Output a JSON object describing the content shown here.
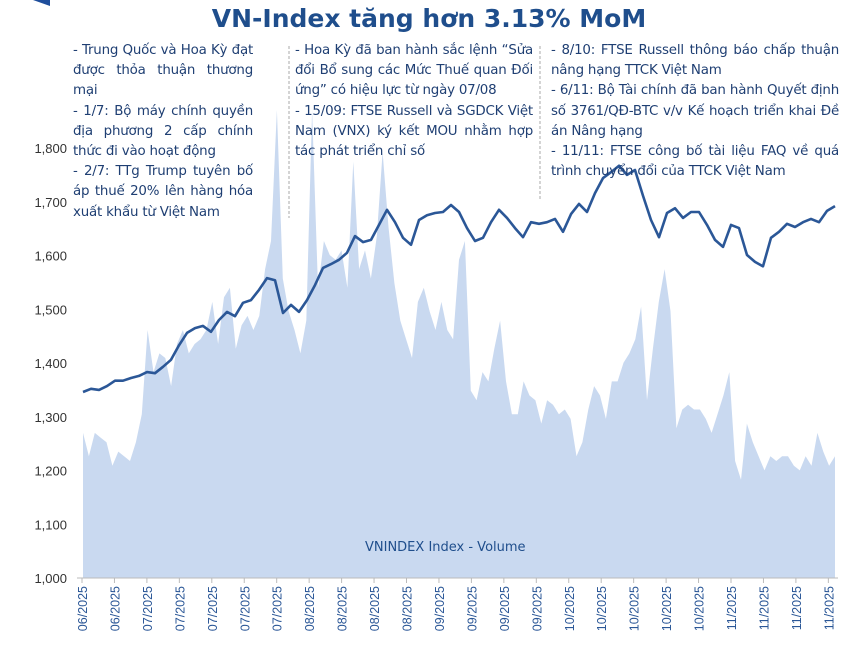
{
  "title": "VN-Index tăng hơn 3.13% MoM",
  "annotations": [
    {
      "items": [
        "- Trung Quốc và Hoa Kỳ đạt được thỏa thuận thương mại",
        "- 1/7: Bộ máy chính quyền địa phương 2 cấp chính thức đi vào hoạt động",
        "- 2/7: TTg Trump tuyên bố áp thuế 20% lên hàng hóa xuất khẩu từ Việt Nam"
      ]
    },
    {
      "items": [
        "- Hoa Kỳ đã ban hành sắc lệnh “Sửa đổi Bổ sung các Mức Thuế quan Đối ứng” có hiệu lực từ ngày 07/08",
        "- 15/09: FTSE Russell và SGDCK Việt Nam (VNX) ký kết MOU nhằm hợp tác phát triển chỉ số"
      ]
    },
    {
      "items": [
        "- 8/10: FTSE Russell thông báo chấp thuận nâng hạng TTCK Việt Nam",
        "- 6/11: Bộ Tài chính đã ban hành Quyết định số 3761/QĐ-BTC v/v Kế hoạch triển khai Đề án Nâng hạng",
        "- 11/11: FTSE công bố tài liệu FAQ về quá trình chuyển đổi của TTCK Việt Nam"
      ]
    }
  ],
  "chart_data": {
    "type": "line",
    "title": "VN-Index tăng hơn 3.13% MoM",
    "ylim": [
      1000,
      1800
    ],
    "yticks": [
      "1,000",
      "1,100",
      "1,200",
      "1,300",
      "1,400",
      "1,500",
      "1,600",
      "1,700",
      "1,800"
    ],
    "ytick_values": [
      1000,
      1100,
      1200,
      1300,
      1400,
      1500,
      1600,
      1700,
      1800
    ],
    "xticks": [
      "06/2025",
      "06/2025",
      "07/2025",
      "07/2025",
      "07/2025",
      "07/2025",
      "07/2025",
      "08/2025",
      "08/2025",
      "08/2025",
      "08/2025",
      "09/2025",
      "09/2025",
      "09/2025",
      "09/2025",
      "10/2025",
      "10/2025",
      "10/2025",
      "10/2025",
      "10/2025",
      "11/2025",
      "11/2025",
      "11/2025",
      "11/2025"
    ],
    "grid": false,
    "colors": {
      "line": "#2b5797",
      "volume": "#c9d9f0",
      "text": "#1f4e8c"
    },
    "series": [
      {
        "type": "line",
        "values": [
          1346,
          1352,
          1350,
          1357,
          1367,
          1367,
          1372,
          1376,
          1383,
          1381,
          1393,
          1406,
          1433,
          1456,
          1465,
          1469,
          1458,
          1480,
          1495,
          1487,
          1512,
          1517,
          1536,
          1558,
          1554,
          1493,
          1508,
          1495,
          1517,
          1545,
          1577,
          1584,
          1592,
          1605,
          1636,
          1625,
          1629,
          1657,
          1685,
          1662,
          1633,
          1620,
          1666,
          1675,
          1679,
          1681,
          1694,
          1681,
          1651,
          1627,
          1633,
          1662,
          1685,
          1670,
          1651,
          1634,
          1662,
          1659,
          1662,
          1668,
          1644,
          1677,
          1696,
          1681,
          1716,
          1744,
          1755,
          1767,
          1750,
          1759,
          1711,
          1666,
          1634,
          1679,
          1688,
          1670,
          1681,
          1681,
          1657,
          1629,
          1616,
          1657,
          1651,
          1601,
          1588,
          1580,
          1633,
          1644,
          1659,
          1653,
          1662,
          1668,
          1662,
          1683,
          1692
        ]
      },
      {
        "type": "area",
        "name": "VNINDEX Index - Volume",
        "relative_values": [
          0.31,
          0.26,
          0.31,
          0.3,
          0.29,
          0.24,
          0.27,
          0.26,
          0.25,
          0.29,
          0.35,
          0.53,
          0.44,
          0.48,
          0.47,
          0.41,
          0.5,
          0.53,
          0.48,
          0.5,
          0.51,
          0.53,
          0.59,
          0.5,
          0.6,
          0.62,
          0.49,
          0.54,
          0.56,
          0.53,
          0.56,
          0.66,
          0.72,
          1.0,
          0.64,
          0.57,
          0.53,
          0.48,
          0.55,
          1.0,
          0.62,
          0.72,
          0.69,
          0.68,
          0.7,
          0.62,
          0.89,
          0.66,
          0.7,
          0.64,
          0.73,
          0.91,
          0.75,
          0.63,
          0.55,
          0.51,
          0.47,
          0.59,
          0.62,
          0.57,
          0.53,
          0.59,
          0.53,
          0.51,
          0.68,
          0.72,
          0.4,
          0.38,
          0.44,
          0.42,
          0.49,
          0.55,
          0.42,
          0.35,
          0.35,
          0.42,
          0.39,
          0.38,
          0.33,
          0.38,
          0.37,
          0.35,
          0.36,
          0.34,
          0.26,
          0.29,
          0.36,
          0.41,
          0.39,
          0.34,
          0.42,
          0.42,
          0.46,
          0.48,
          0.51,
          0.58,
          0.38,
          0.49,
          0.59,
          0.66,
          0.57,
          0.32,
          0.36,
          0.37,
          0.36,
          0.36,
          0.34,
          0.31,
          0.35,
          0.39,
          0.44,
          0.25,
          0.21,
          0.33,
          0.29,
          0.26,
          0.23,
          0.26,
          0.25,
          0.26,
          0.26,
          0.24,
          0.23,
          0.26,
          0.24,
          0.31,
          0.27,
          0.24,
          0.26
        ]
      }
    ]
  }
}
